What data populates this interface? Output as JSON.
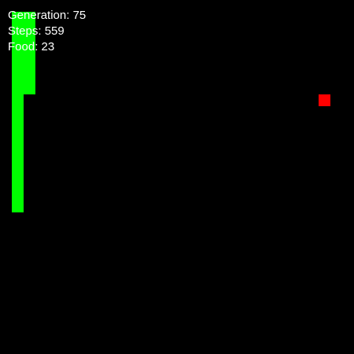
{
  "hud": {
    "generation_label": "Generation",
    "generation": "75",
    "steps_label": "Steps",
    "steps": "559",
    "food_label": "Food",
    "food": "23"
  },
  "colors": {
    "background": "#000000",
    "snake": "#00ff00",
    "food": "#ff0000",
    "text": "#ffffff"
  },
  "icons": {
    "snake": "snake-body",
    "food": "food-square"
  }
}
